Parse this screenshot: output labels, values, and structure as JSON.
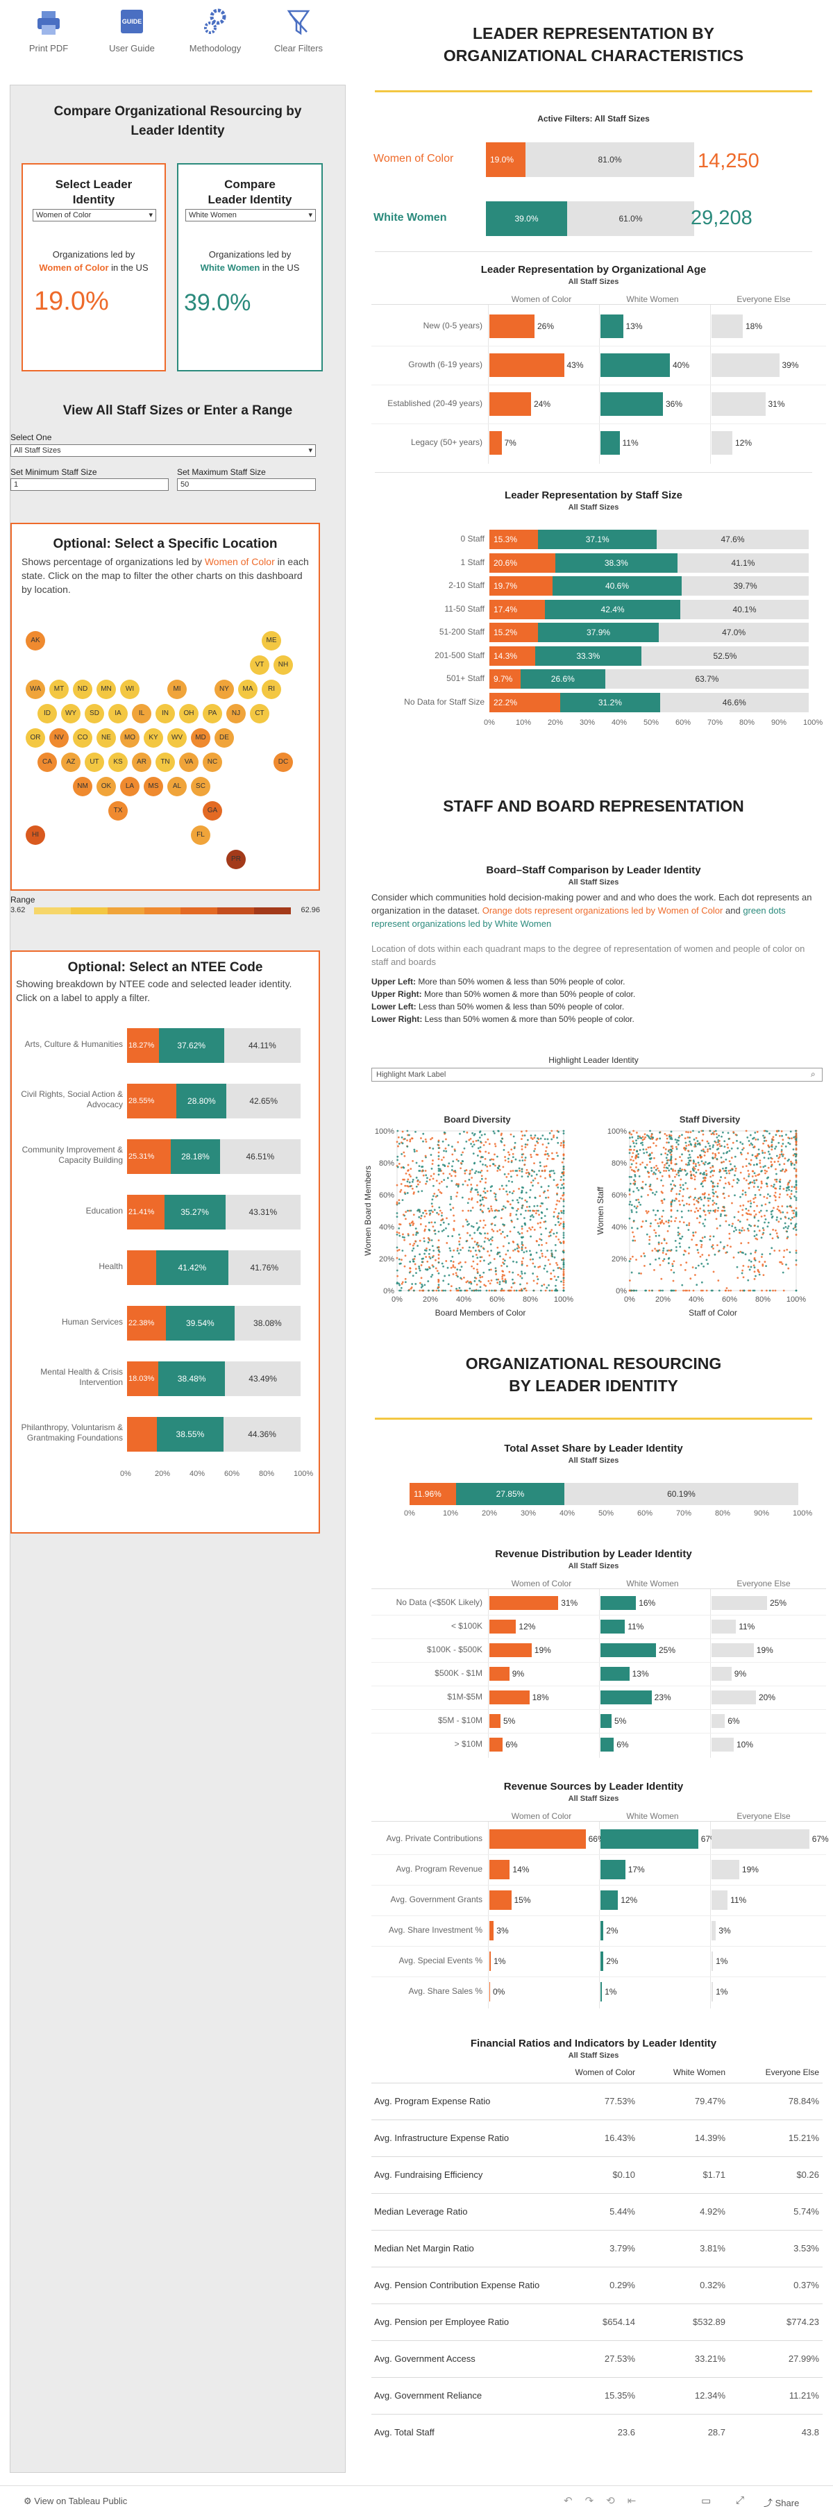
{
  "toolbar": {
    "print": "Print PDF",
    "guide": "User Guide",
    "method": "Methodology",
    "clear": "Clear Filters",
    "guide_badge": "GUIDE"
  },
  "left": {
    "title": "Compare Organizational Resourcing by Leader Identity",
    "select_title": "Select Leader Identity",
    "compare_title": "Compare Leader Identity",
    "select_value": "Women of Color",
    "compare_value": "White Women",
    "select_text_a": "Organizations led by",
    "select_text_b": "Women of Color",
    "select_text_c": "in the US",
    "compare_text_a": "Organizations led by",
    "compare_text_b": "White Women",
    "compare_text_c": "in the US",
    "select_pct": "19.0%",
    "compare_pct": "39.0%",
    "range_title": "View All Staff Sizes or Enter a Range",
    "select_one": "Select One",
    "staff_value": "All Staff Sizes",
    "min_label": "Set Minimum Staff Size",
    "max_label": "Set Maximum Staff Size",
    "min_value": "1",
    "max_value": "50",
    "loc_title": "Optional:  Select a Specific Location",
    "loc_text_a": "Shows percentage of organizations led by",
    "loc_text_b": "Women of Color",
    "loc_text_c": "in each state. Click on the map to filter the other charts on this dashboard by location.",
    "range_label": "Range",
    "range_min": "3.62",
    "range_max": "62.96",
    "ntee_title": "Optional: Select an NTEE Code",
    "ntee_text": "Showing breakdown by NTEE code and selected leader identity. Click on a label to apply a filter.",
    "ntee_rows": [
      {
        "label": [
          "Arts, Culture & Humanities"
        ],
        "o": "18.27%",
        "g": "37.62%",
        "l": "44.11%",
        "ov": 18.27,
        "gv": 37.62
      },
      {
        "label": [
          "Civil Rights, Social Action &",
          "Advocacy"
        ],
        "o": "28.55%",
        "g": "28.80%",
        "l": "42.65%",
        "ov": 28.55,
        "gv": 28.8
      },
      {
        "label": [
          "Community Improvement &",
          "Capacity Building"
        ],
        "o": "25.31%",
        "g": "28.18%",
        "l": "46.51%",
        "ov": 25.31,
        "gv": 28.18
      },
      {
        "label": [
          "Education"
        ],
        "o": "21.41%",
        "g": "35.27%",
        "l": "43.31%",
        "ov": 21.41,
        "gv": 35.27
      },
      {
        "label": [
          "Health"
        ],
        "o": "",
        "g": "41.42%",
        "l": "41.76%",
        "ov": 16.82,
        "gv": 41.42
      },
      {
        "label": [
          "Human Services"
        ],
        "o": "22.38%",
        "g": "39.54%",
        "l": "38.08%",
        "ov": 22.38,
        "gv": 39.54
      },
      {
        "label": [
          "Mental Health & Crisis",
          "Intervention"
        ],
        "o": "18.03%",
        "g": "38.48%",
        "l": "43.49%",
        "ov": 18.03,
        "gv": 38.48
      },
      {
        "label": [
          "Philanthropy, Voluntarism &",
          "Grantmaking Foundations"
        ],
        "o": "",
        "g": "38.55%",
        "l": "44.36%",
        "ov": 17.09,
        "gv": 38.55
      }
    ],
    "ntee_ticks": [
      "0%",
      "20%",
      "40%",
      "60%",
      "80%",
      "100%"
    ],
    "states": [
      [
        "AK",
        0,
        0,
        "#ef8a2f"
      ],
      [
        "ME",
        10,
        0,
        "#f3c742"
      ],
      [
        "VT",
        9,
        1,
        "#f3c742"
      ],
      [
        "NH",
        10,
        1,
        "#f3c742"
      ],
      [
        "WA",
        0,
        2,
        "#f0a43a"
      ],
      [
        "MT",
        1,
        2,
        "#f3c742"
      ],
      [
        "ND",
        2,
        2,
        "#f3c742"
      ],
      [
        "MN",
        3,
        2,
        "#f3c742"
      ],
      [
        "WI",
        4,
        2,
        "#f3c742"
      ],
      [
        "MI",
        6,
        2,
        "#f0a43a"
      ],
      [
        "NY",
        8,
        2,
        "#f0a43a"
      ],
      [
        "MA",
        9,
        2,
        "#f3c742"
      ],
      [
        "RI",
        10,
        2,
        "#f3c742"
      ],
      [
        "ID",
        0,
        3,
        "#f3c742"
      ],
      [
        "WY",
        1,
        3,
        "#f3c742"
      ],
      [
        "SD",
        2,
        3,
        "#f3c742"
      ],
      [
        "IA",
        3,
        3,
        "#f3c742"
      ],
      [
        "IL",
        4,
        3,
        "#f0a43a"
      ],
      [
        "IN",
        5,
        3,
        "#f3c742"
      ],
      [
        "OH",
        6,
        3,
        "#f3c742"
      ],
      [
        "PA",
        7,
        3,
        "#f3c742"
      ],
      [
        "NJ",
        8,
        3,
        "#f0a43a"
      ],
      [
        "CT",
        9,
        3,
        "#f3c742"
      ],
      [
        "OR",
        0,
        4,
        "#f3c742"
      ],
      [
        "NV",
        1,
        4,
        "#ef8a2f"
      ],
      [
        "CO",
        2,
        4,
        "#f3c742"
      ],
      [
        "NE",
        3,
        4,
        "#f3c742"
      ],
      [
        "MO",
        4,
        4,
        "#f0a43a"
      ],
      [
        "KY",
        5,
        4,
        "#f3c742"
      ],
      [
        "WV",
        6,
        4,
        "#f3c742"
      ],
      [
        "MD",
        7,
        4,
        "#ef8a2f"
      ],
      [
        "DE",
        8,
        4,
        "#f0a43a"
      ],
      [
        "CA",
        0,
        5,
        "#ef8a2f"
      ],
      [
        "AZ",
        1,
        5,
        "#f0a43a"
      ],
      [
        "UT",
        2,
        5,
        "#f3c742"
      ],
      [
        "KS",
        3,
        5,
        "#f3c742"
      ],
      [
        "AR",
        4,
        5,
        "#f0a43a"
      ],
      [
        "TN",
        5,
        5,
        "#f3c742"
      ],
      [
        "VA",
        6,
        5,
        "#f0a43a"
      ],
      [
        "NC",
        7,
        5,
        "#f0a43a"
      ],
      [
        "DC",
        10,
        5,
        "#ef8a2f"
      ],
      [
        "NM",
        2,
        6,
        "#ef8a2f"
      ],
      [
        "OK",
        3,
        6,
        "#f0a43a"
      ],
      [
        "LA",
        4,
        6,
        "#ef8a2f"
      ],
      [
        "MS",
        5,
        6,
        "#ef8a2f"
      ],
      [
        "AL",
        6,
        6,
        "#f0a43a"
      ],
      [
        "SC",
        7,
        6,
        "#f0a43a"
      ],
      [
        "TX",
        3,
        7,
        "#ef8a2f"
      ],
      [
        "GA",
        7,
        7,
        "#e36a24"
      ],
      [
        "HI",
        0,
        8,
        "#d95a1f"
      ],
      [
        "FL",
        7,
        8,
        "#f0a43a"
      ],
      [
        "PR",
        8,
        9,
        "#a33a1a"
      ]
    ]
  },
  "right": {
    "title1": "LEADER REPRESENTATION BY ORGANIZATIONAL CHARACTERISTICS",
    "active_filters": "Active Filters:  All Staff Sizes",
    "woc_label": "Women of Color",
    "ww_label": "White Women",
    "woc_a": "19.0%",
    "woc_b": "81.0%",
    "woc_count": "14,250",
    "ww_a": "39.0%",
    "ww_b": "61.0%",
    "ww_count": "29,208",
    "cols": [
      "Women of Color",
      "White Women",
      "Everyone Else"
    ],
    "age_title": "Leader Representation by Organizational Age",
    "sub": "All Staff Sizes",
    "age_rows": [
      {
        "label": "New (0-5 years)",
        "o": 26,
        "g": 13,
        "e": 18
      },
      {
        "label": "Growth (6-19 years)",
        "o": 43,
        "g": 40,
        "e": 39
      },
      {
        "label": "Established (20-49 years)",
        "o": 24,
        "g": 36,
        "e": 31
      },
      {
        "label": "Legacy (50+ years)",
        "o": 7,
        "g": 11,
        "e": 12
      }
    ],
    "age_labels": {
      "o": [
        "26%",
        "43%",
        "24%",
        "7%"
      ],
      "g": [
        "13%",
        "40%",
        "36%",
        "11%"
      ],
      "e": [
        "18%",
        "39%",
        "31%",
        "12%"
      ]
    },
    "staff_title": "Leader Representation by Staff Size",
    "staff_rows": [
      {
        "label": "0 Staff",
        "o": "15.3%",
        "g": "37.1%",
        "l": "47.6%",
        "ov": 15.3,
        "gv": 37.1
      },
      {
        "label": "1 Staff",
        "o": "20.6%",
        "g": "38.3%",
        "l": "41.1%",
        "ov": 20.6,
        "gv": 38.3
      },
      {
        "label": "2-10 Staff",
        "o": "19.7%",
        "g": "40.6%",
        "l": "39.7%",
        "ov": 19.7,
        "gv": 40.6
      },
      {
        "label": "11-50 Staff",
        "o": "17.4%",
        "g": "42.4%",
        "l": "40.1%",
        "ov": 17.4,
        "gv": 42.4
      },
      {
        "label": "51-200 Staff",
        "o": "15.2%",
        "g": "37.9%",
        "l": "47.0%",
        "ov": 15.2,
        "gv": 37.9
      },
      {
        "label": "201-500 Staff",
        "o": "14.3%",
        "g": "33.3%",
        "l": "52.5%",
        "ov": 14.3,
        "gv": 33.3
      },
      {
        "label": "501+ Staff",
        "o": "9.7%",
        "g": "26.6%",
        "l": "63.7%",
        "ov": 9.7,
        "gv": 26.6
      },
      {
        "label": "No Data for Staff Size",
        "o": "22.2%",
        "g": "31.2%",
        "l": "46.6%",
        "ov": 22.2,
        "gv": 31.2
      }
    ],
    "pct_ticks": [
      "0%",
      "10%",
      "20%",
      "30%",
      "40%",
      "50%",
      "60%",
      "70%",
      "80%",
      "90%",
      "100%"
    ],
    "title2": "STAFF AND BOARD REPRESENTATION",
    "board_title": "Board–Staff Comparison by Leader Identity",
    "board_desc_a": "Consider which communities hold decision-making power and and who does the work. Each dot represents an organization in the dataset.",
    "board_desc_b": "Orange dots represent organizations led by Women of Color",
    "board_desc_c": "and",
    "board_desc_d": "green dots represent organizations led by White Women",
    "board_desc2": "Location of dots within each quadrant maps to the degree of representation of women and people of color on staff and boards",
    "quad": [
      {
        "k": "Upper Left:",
        "v": " More than 50% women & less than 50% people of color."
      },
      {
        "k": "Upper Right:",
        "v": " More than 50% women &  more than 50% people of color."
      },
      {
        "k": "Lower Left:",
        "v": " Less than 50% women & less than 50% people of color."
      },
      {
        "k": "Lower Right:",
        "v": " Less than 50% women & more than 50% people of color."
      }
    ],
    "highlight_label": "Highlight Leader Identity",
    "highlight_placeholder": "Highlight Mark Label",
    "board_div": "Board Diversity",
    "staff_div": "Staff Diversity",
    "board_y": "Women Board Members",
    "board_x": "Board Members of Color",
    "staff_y": "Women Staff",
    "staff_x": "Staff of Color",
    "title3": "ORGANIZATIONAL RESOURCING BY LEADER IDENTITY",
    "asset_title": "Total Asset Share by Leader Identity",
    "asset": {
      "o": "11.96%",
      "g": "27.85%",
      "l": "60.19%",
      "ov": 11.96,
      "gv": 27.85
    },
    "rev_title": "Revenue Distribution by Leader Identity",
    "rev_rows": [
      {
        "label": "No Data (<$50K Likely)",
        "o": 31,
        "g": 16,
        "e": 25
      },
      {
        "label": "< $100K",
        "o": 12,
        "g": 11,
        "e": 11
      },
      {
        "label": "$100K - $500K",
        "o": 19,
        "g": 25,
        "e": 19
      },
      {
        "label": "$500K - $1M",
        "o": 9,
        "g": 13,
        "e": 9
      },
      {
        "label": "$1M-$5M",
        "o": 18,
        "g": 23,
        "e": 20
      },
      {
        "label": "$5M - $10M",
        "o": 5,
        "g": 5,
        "e": 6
      },
      {
        "label": "> $10M",
        "o": 6,
        "g": 6,
        "e": 10
      }
    ],
    "rev_labels": {
      "o": [
        "31%",
        "12%",
        "19%",
        "9%",
        "18%",
        "5%",
        "6%"
      ],
      "g": [
        "16%",
        "11%",
        "25%",
        "13%",
        "23%",
        "5%",
        "6%"
      ],
      "e": [
        "25%",
        "11%",
        "19%",
        "9%",
        "20%",
        "6%",
        "10%"
      ]
    },
    "src_title": "Revenue Sources by Leader Identity",
    "src_rows": [
      {
        "label": "Avg. Private Contributions",
        "o": 66,
        "g": 67,
        "e": 67
      },
      {
        "label": "Avg. Program Revenue",
        "o": 14,
        "g": 17,
        "e": 19
      },
      {
        "label": "Avg. Government Grants",
        "o": 15,
        "g": 12,
        "e": 11
      },
      {
        "label": "Avg. Share Investment %",
        "o": 3,
        "g": 2,
        "e": 3
      },
      {
        "label": "Avg. Special Events %",
        "o": 1,
        "g": 2,
        "e": 1
      },
      {
        "label": "Avg. Share Sales %",
        "o": 0,
        "g": 1,
        "e": 1
      }
    ],
    "src_labels": {
      "o": [
        "66%",
        "14%",
        "15%",
        "3%",
        "1%",
        "0%"
      ],
      "g": [
        "67%",
        "17%",
        "12%",
        "2%",
        "2%",
        "1%"
      ],
      "e": [
        "67%",
        "19%",
        "11%",
        "3%",
        "1%",
        "1%"
      ]
    },
    "fin_title": "Financial Ratios and Indicators by Leader Identity",
    "fin_rows": [
      [
        "Avg. Program Expense Ratio",
        "77.53%",
        "79.47%",
        "78.84%"
      ],
      [
        "Avg. Infrastructure Expense Ratio",
        "16.43%",
        "14.39%",
        "15.21%"
      ],
      [
        "Avg. Fundraising Efficiency",
        "$0.10",
        "$1.71",
        "$0.26"
      ],
      [
        "Median Leverage Ratio",
        "5.44%",
        "4.92%",
        "5.74%"
      ],
      [
        "Median Net Margin Ratio",
        "3.79%",
        "3.81%",
        "3.53%"
      ],
      [
        "Avg. Pension Contribution Expense Ratio",
        "0.29%",
        "0.32%",
        "0.37%"
      ],
      [
        "Avg. Pension per Employee Ratio",
        "$654.14",
        "$532.89",
        "$774.23"
      ],
      [
        "Avg. Government Access",
        "27.53%",
        "33.21%",
        "27.99%"
      ],
      [
        "Avg. Government Reliance",
        "15.35%",
        "12.34%",
        "11.21%"
      ],
      [
        "Avg. Total Staff",
        "23.6",
        "28.7",
        "43.8"
      ]
    ]
  },
  "footer": {
    "tableau": "View on Tableau Public",
    "share": "Share"
  },
  "colors": {
    "orange": "#ee6a2a",
    "green": "#2a8a7c",
    "light": "#e2e2e2",
    "yellow": "#f3c742"
  }
}
